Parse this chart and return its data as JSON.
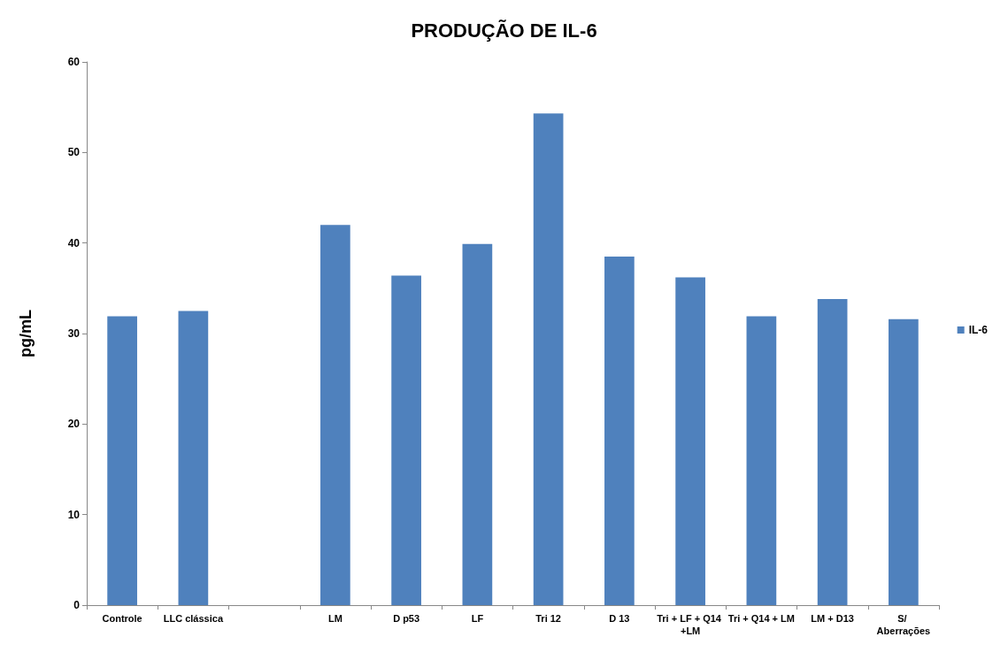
{
  "chart_data": {
    "type": "bar",
    "title": "PRODUÇÃO DE IL-6",
    "ylabel": "pg/mL",
    "categories": [
      "Controle",
      "LLC clássica",
      null,
      "LM",
      "D p53",
      "LF",
      "Tri 12",
      "D 13",
      "Tri + LF + Q14 +LM",
      "Tri + Q14 + LM",
      "LM + D13",
      "S/ Aberrações"
    ],
    "series": [
      {
        "name": "IL-6",
        "color": "#4f81bd",
        "values": [
          31.9,
          32.5,
          null,
          42.0,
          36.4,
          39.9,
          54.3,
          38.5,
          36.2,
          31.9,
          33.8,
          31.6
        ]
      }
    ],
    "ylim": [
      0,
      60
    ],
    "yticks": [
      0,
      10,
      20,
      30,
      40,
      50,
      60
    ],
    "grid": false,
    "legend": "right"
  }
}
